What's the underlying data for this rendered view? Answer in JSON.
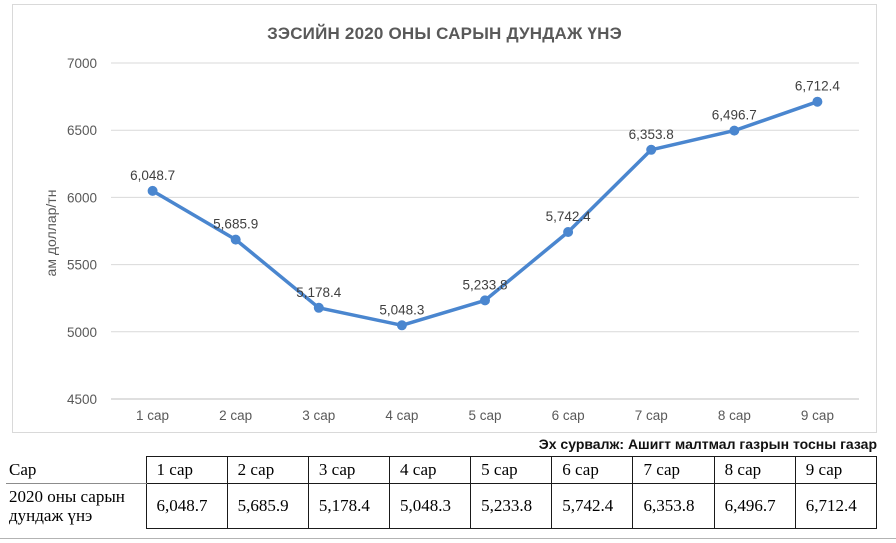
{
  "chart": {
    "title": "ЗЭСИЙН 2020 ОНЫ САРЫН ДУНДАЖ ҮНЭ",
    "y_axis_title": "ам доллар/тн"
  },
  "chart_data": {
    "type": "line",
    "title": "ЗЭСИЙН 2020 ОНЫ САРЫН ДУНДАЖ ҮНЭ",
    "categories": [
      "1 сар",
      "2 сар",
      "3 сар",
      "4 сар",
      "5 сар",
      "6 сар",
      "7 сар",
      "8 сар",
      "9 сар"
    ],
    "series": [
      {
        "name": "2020 оны сарын дундаж үнэ",
        "values": [
          6048.7,
          5685.9,
          5178.4,
          5048.3,
          5233.8,
          5742.4,
          6353.8,
          6496.7,
          6712.4
        ]
      }
    ],
    "data_labels": [
      "6,048.7",
      "5,685.9",
      "5,178.4",
      "5,048.3",
      "5,233.8",
      "5,742.4",
      "6,353.8",
      "6,496.7",
      "6,712.4"
    ],
    "xlabel": "",
    "ylabel": "ам доллар/тн",
    "ylim": [
      4500,
      7000
    ],
    "yticks": [
      7000,
      6500,
      6000,
      5500,
      5000,
      4500
    ],
    "grid": true,
    "legend": false,
    "marker": "circle"
  },
  "source_note": "Эх сурвалж: Ашигт малтмал газрын тосны газар",
  "table": {
    "row_header_label": "Сар",
    "row_label": "2020 оны сарын дундаж үнэ",
    "columns": [
      "1 сар",
      "2 сар",
      "3 сар",
      "4 сар",
      "5 сар",
      "6 сар",
      "7 сар",
      "8 сар",
      "9 сар"
    ],
    "values": [
      "6,048.7",
      "5,685.9",
      "5,178.4",
      "5,048.3",
      "5,233.8",
      "5,742.4",
      "6,353.8",
      "6,496.7",
      "6,712.4"
    ]
  },
  "colors": {
    "line": "#4a86cf",
    "marker": "#4a86cf",
    "grid": "#d9d9d9",
    "axis_line": "#bfbfbf",
    "axis_text": "#595959",
    "label_text": "#404040",
    "chart_border": "#d9d9d9",
    "table_border": "#1a1a1a"
  }
}
